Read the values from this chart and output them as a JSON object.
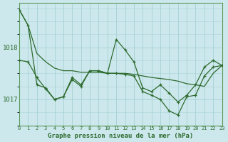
{
  "title": "Graphe pression niveau de la mer (hPa)",
  "background_color": "#cce8ec",
  "grid_color": "#aad4d8",
  "line_color": "#2d6a2d",
  "x_labels": [
    "0",
    "1",
    "2",
    "3",
    "4",
    "5",
    "6",
    "7",
    "8",
    "9",
    "10",
    "11",
    "12",
    "13",
    "14",
    "15",
    "16",
    "17",
    "18",
    "19",
    "20",
    "21",
    "22",
    "23"
  ],
  "y_ticks": [
    1017,
    1018
  ],
  "ylim": [
    1016.5,
    1018.85
  ],
  "xlim": [
    0,
    23
  ],
  "series_high": [
    1018.72,
    1018.42,
    1017.88,
    1017.72,
    1017.6,
    1017.55,
    1017.55,
    1017.52,
    1017.52,
    1017.52,
    1017.5,
    1017.5,
    1017.5,
    1017.48,
    1017.45,
    1017.42,
    1017.4,
    1017.38,
    1017.35,
    1017.3,
    1017.28,
    1017.25,
    1017.5,
    1017.65
  ],
  "series_mid": [
    1017.75,
    1017.72,
    1017.42,
    1017.2,
    1017.0,
    1017.05,
    1017.42,
    1017.28,
    1017.55,
    1017.55,
    1017.5,
    1018.15,
    1017.95,
    1017.72,
    1017.22,
    1017.15,
    1017.28,
    1017.12,
    1016.95,
    1017.08,
    1017.28,
    1017.62,
    1017.75,
    1017.65
  ],
  "series_low": [
    1018.72,
    1018.42,
    1017.28,
    1017.22,
    1017.0,
    1017.05,
    1017.38,
    1017.25,
    1017.55,
    1017.55,
    1017.5,
    1017.5,
    1017.48,
    1017.45,
    1017.15,
    1017.08,
    1017.0,
    1016.78,
    1016.7,
    1017.05,
    1017.08,
    1017.45,
    1017.62,
    1017.65
  ]
}
